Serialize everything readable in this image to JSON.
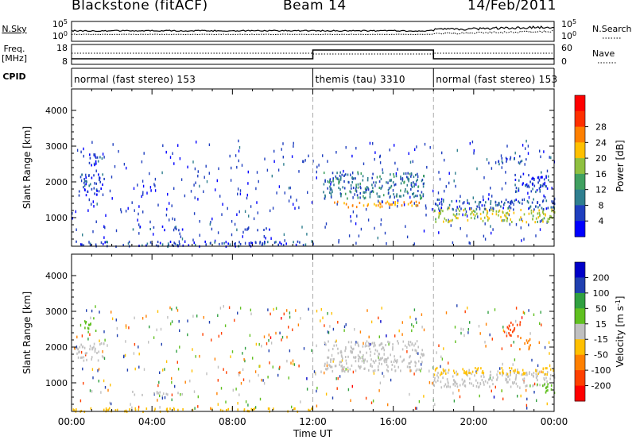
{
  "header": {
    "station": "Blackstone (fitACF)",
    "beam": "Beam 14",
    "date": "14/Feb/2011"
  },
  "noise_panel": {
    "left_label": "N.Sky",
    "left_ticks": [
      "10^5",
      "10^0"
    ],
    "right_label": "N.Search",
    "right_ticks": [
      "10^5",
      "10^0"
    ]
  },
  "freq_panel": {
    "left_label": "Freq.",
    "left_unit": "[MHz]",
    "left_ticks": [
      "18",
      "8"
    ],
    "right_label": "Nave",
    "right_ticks": [
      "60",
      "0"
    ]
  },
  "cpid_panel": {
    "label": "CPID",
    "segments": [
      {
        "text": "normal (fast stereo) 153",
        "start_h": 0,
        "end_h": 12
      },
      {
        "text": "themis (tau) 3310",
        "start_h": 12,
        "end_h": 18
      },
      {
        "text": "normal (fast stereo) 153",
        "start_h": 18,
        "end_h": 24
      }
    ]
  },
  "colors": {
    "power": [
      "#0000ff",
      "#1f3fbf",
      "#2f7f8f",
      "#40a060",
      "#8fc040",
      "#ffc000",
      "#ff8000",
      "#ff3000",
      "#ff0000"
    ],
    "velocity": [
      "#0000c8",
      "#2040b0",
      "#30a040",
      "#60c020",
      "#c0c0c0",
      "#ffc000",
      "#ff8000",
      "#ff4000",
      "#ff0000"
    ]
  },
  "chart_data": [
    {
      "type": "heatmap",
      "name": "Power",
      "ylabel": "Slant Range [km]",
      "yticks": [
        1000,
        2000,
        3000,
        4000
      ],
      "ylim": [
        200,
        4600
      ],
      "xlim": [
        0,
        24
      ],
      "colorbar_label": "Power [dB]",
      "colorbar_ticks": [
        "4",
        "8",
        "12",
        "16",
        "20",
        "24",
        "28"
      ],
      "crange": [
        0,
        30
      ],
      "mode_boundaries_h": [
        12,
        18
      ],
      "regions": [
        {
          "h0": 0.3,
          "h1": 1.6,
          "r0": 1650,
          "r1": 2250,
          "val": 5
        },
        {
          "h0": 0.8,
          "h1": 1.5,
          "r0": 2450,
          "r1": 2850,
          "val": 5
        },
        {
          "h0": 3.0,
          "h1": 5.5,
          "r0": 680,
          "r1": 780,
          "val": 5
        },
        {
          "h0": 8.0,
          "h1": 10.0,
          "r0": 680,
          "r1": 760,
          "val": 5
        },
        {
          "h0": 0.0,
          "h1": 12.0,
          "r0": 220,
          "r1": 360,
          "val": 5
        },
        {
          "h0": 12.5,
          "h1": 17.5,
          "r0": 1550,
          "r1": 2300,
          "val": 8
        },
        {
          "h0": 13.0,
          "h1": 17.5,
          "r0": 1320,
          "r1": 1480,
          "val": 20
        },
        {
          "h0": 18.0,
          "h1": 24.0,
          "r0": 900,
          "r1": 1300,
          "val": 16
        },
        {
          "h0": 18.0,
          "h1": 24.0,
          "r0": 1250,
          "r1": 1550,
          "val": 6
        },
        {
          "h0": 21.2,
          "h1": 22.6,
          "r0": 2500,
          "r1": 2750,
          "val": 6
        },
        {
          "h0": 22.0,
          "h1": 23.7,
          "r0": 1700,
          "r1": 2300,
          "val": 5
        }
      ]
    },
    {
      "type": "heatmap",
      "name": "Velocity",
      "ylabel": "Slant Range [km]",
      "yticks": [
        1000,
        2000,
        3000,
        4000
      ],
      "ylim": [
        200,
        4600
      ],
      "xlim": [
        0,
        24
      ],
      "xlabel": "Time UT",
      "xticks": [
        "00:00",
        "04:00",
        "08:00",
        "12:00",
        "16:00",
        "20:00",
        "00:00"
      ],
      "colorbar_label": "Velocity [m s-1]",
      "colorbar_ticks": [
        "200",
        "100",
        "50",
        "15",
        "-15",
        "-50",
        "-100",
        "-200"
      ],
      "crange": [
        -250,
        250
      ],
      "mode_boundaries_h": [
        12,
        18
      ],
      "regions": [
        {
          "h0": 0.2,
          "h1": 1.6,
          "r0": 1650,
          "r1": 2150,
          "val": 0
        },
        {
          "h0": 0.6,
          "h1": 1.2,
          "r0": 2450,
          "r1": 2850,
          "val": 40
        },
        {
          "h0": 3.0,
          "h1": 5.5,
          "r0": 680,
          "r1": 780,
          "val": 0
        },
        {
          "h0": 0.0,
          "h1": 12.0,
          "r0": 220,
          "r1": 320,
          "val": -60
        },
        {
          "h0": 12.5,
          "h1": 17.5,
          "r0": 1350,
          "r1": 2200,
          "val": 0
        },
        {
          "h0": 18.0,
          "h1": 24.0,
          "r0": 900,
          "r1": 1350,
          "val": 0
        },
        {
          "h0": 18.0,
          "h1": 24.0,
          "r0": 1250,
          "r1": 1450,
          "val": -40
        },
        {
          "h0": 21.5,
          "h1": 22.3,
          "r0": 2300,
          "r1": 2750,
          "val": -180
        },
        {
          "h0": 22.2,
          "h1": 22.8,
          "r0": 1950,
          "r1": 2300,
          "val": -120
        },
        {
          "h0": 23.0,
          "h1": 24.0,
          "r0": 750,
          "r1": 1000,
          "val": 60
        }
      ]
    }
  ]
}
